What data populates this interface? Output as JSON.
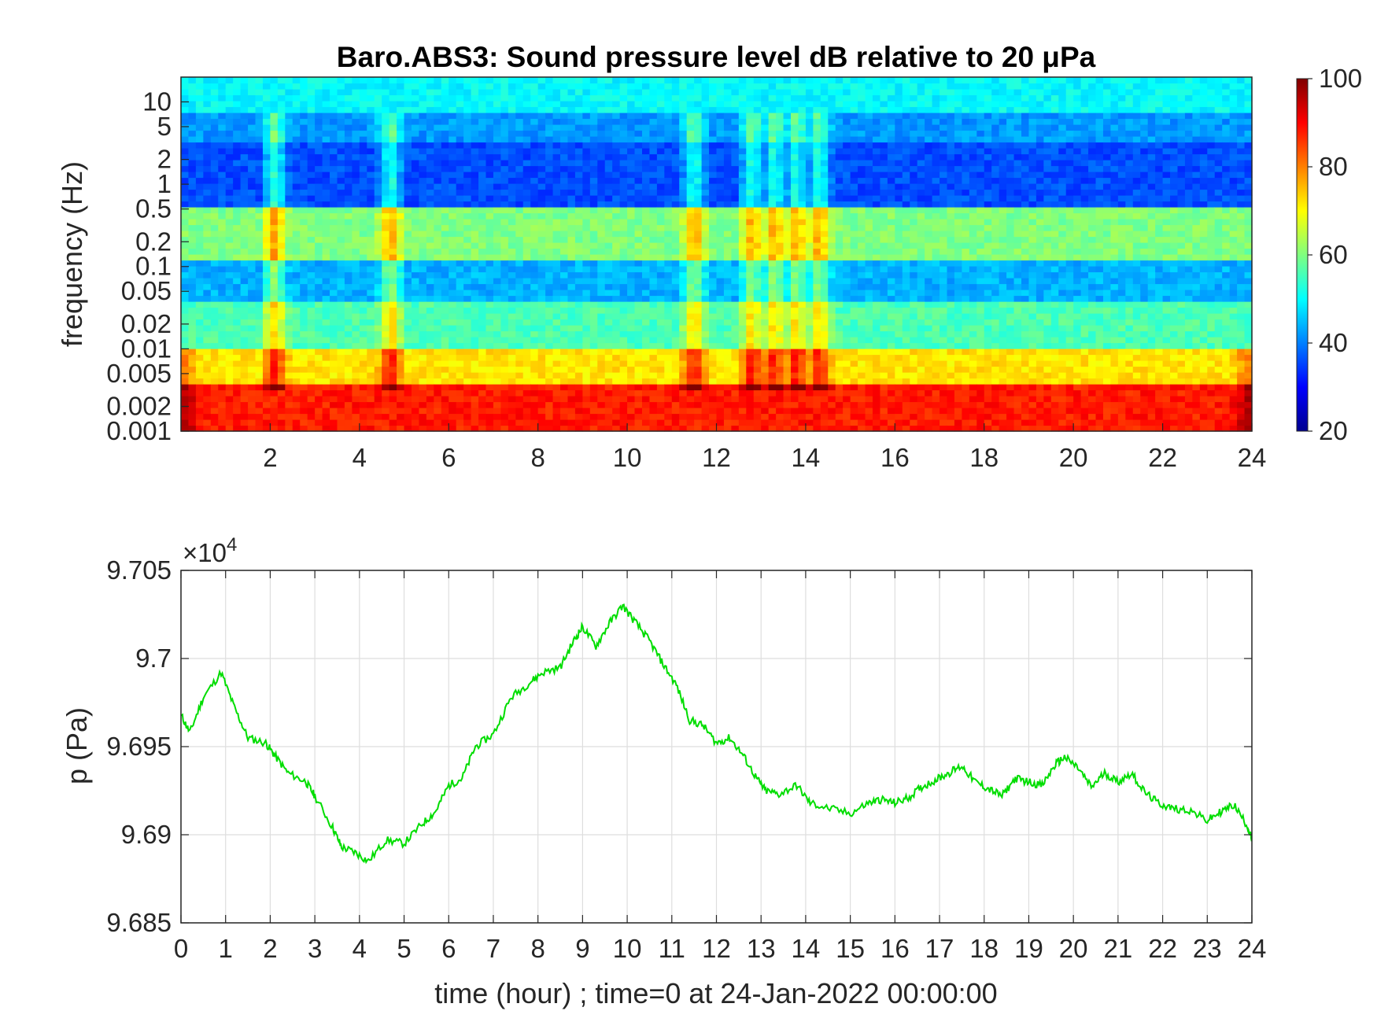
{
  "chart_data": [
    {
      "type": "heatmap",
      "title": "Baro.ABS3: Sound pressure level dB relative to 20 μPa",
      "ylabel": "frequency (Hz)",
      "xlabel": "",
      "x_range": [
        0,
        24
      ],
      "x_ticks": [
        "2",
        "4",
        "6",
        "8",
        "10",
        "12",
        "14",
        "16",
        "18",
        "20",
        "22",
        "24"
      ],
      "y_scale": "log",
      "y_range": [
        0.001,
        20
      ],
      "y_ticks": [
        "0.001",
        "0.002",
        "0.005",
        "0.01",
        "0.02",
        "0.05",
        "0.1",
        "0.2",
        "0.5",
        "1",
        "2",
        "5",
        "10"
      ],
      "colorbar": {
        "range": [
          20,
          100
        ],
        "ticks": [
          "20",
          "40",
          "60",
          "80",
          "100"
        ],
        "colormap": "jet"
      },
      "bands": [
        {
          "freq_range": [
            7,
            20
          ],
          "level_db": 50
        },
        {
          "freq_range": [
            3,
            7
          ],
          "level_db": 42
        },
        {
          "freq_range": [
            0.5,
            3
          ],
          "level_db": 36
        },
        {
          "freq_range": [
            0.12,
            0.5
          ],
          "level_db": 60
        },
        {
          "freq_range": [
            0.04,
            0.12
          ],
          "level_db": 44
        },
        {
          "freq_range": [
            0.01,
            0.04
          ],
          "level_db": 56
        },
        {
          "freq_range": [
            0.004,
            0.01
          ],
          "level_db": 72
        },
        {
          "freq_range": [
            0.001,
            0.004
          ],
          "level_db": 88
        }
      ],
      "events_hour": [
        2.1,
        4.7,
        11.5,
        12.8,
        13.3,
        13.8,
        14.3
      ]
    },
    {
      "type": "line",
      "title": "",
      "xlabel": "time (hour) ; time=0 at 24-Jan-2022 00:00:00",
      "ylabel": "p (Pa)",
      "y_exponent_label": "×10",
      "y_exponent_power": "4",
      "xlim": [
        0,
        24
      ],
      "ylim": [
        9.685,
        9.705
      ],
      "x_ticks": [
        "0",
        "1",
        "2",
        "3",
        "4",
        "5",
        "6",
        "7",
        "8",
        "9",
        "10",
        "11",
        "12",
        "13",
        "14",
        "15",
        "16",
        "17",
        "18",
        "19",
        "20",
        "21",
        "22",
        "23",
        "24"
      ],
      "y_ticks": [
        "9.685",
        "9.69",
        "9.695",
        "9.7",
        "9.705"
      ],
      "grid": true,
      "line_color": "#00dd00",
      "x": [
        0,
        0.2,
        0.5,
        0.9,
        1.2,
        1.5,
        1.9,
        2.1,
        2.4,
        2.8,
        3.0,
        3.4,
        3.6,
        3.9,
        4.2,
        4.6,
        5.0,
        5.4,
        5.7,
        6.0,
        6.3,
        6.6,
        7.0,
        7.4,
        7.8,
        8.1,
        8.5,
        8.8,
        9.0,
        9.3,
        9.6,
        9.9,
        10.2,
        10.5,
        10.8,
        11.1,
        11.4,
        11.7,
        12.0,
        12.3,
        12.6,
        12.9,
        13.1,
        13.4,
        13.8,
        14.1,
        14.5,
        15.0,
        15.4,
        15.7,
        16.0,
        16.3,
        16.6,
        16.9,
        17.2,
        17.5,
        17.8,
        18.1,
        18.4,
        18.7,
        19.0,
        19.3,
        19.6,
        19.8,
        20.1,
        20.4,
        20.7,
        21.0,
        21.3,
        21.6,
        21.9,
        22.2,
        22.6,
        23.0,
        23.3,
        23.6,
        23.9,
        24.0
      ],
      "y": [
        9.6968,
        9.6958,
        9.6978,
        9.6992,
        9.6972,
        9.6955,
        9.6952,
        9.6945,
        9.6935,
        9.693,
        9.6922,
        9.6904,
        9.6893,
        9.689,
        9.6885,
        9.6897,
        9.6895,
        9.6906,
        9.6913,
        9.6928,
        9.6932,
        9.695,
        9.6957,
        9.6978,
        9.6986,
        9.6992,
        9.6995,
        9.701,
        9.7018,
        9.7007,
        9.702,
        9.703,
        9.702,
        9.701,
        9.6997,
        9.6985,
        9.6965,
        9.6962,
        9.6952,
        9.6955,
        9.6945,
        9.6932,
        9.6925,
        9.6923,
        9.6928,
        9.6918,
        9.6915,
        9.6912,
        9.6918,
        9.692,
        9.6918,
        9.6921,
        9.6927,
        9.6931,
        9.6935,
        9.6939,
        9.693,
        9.6926,
        9.6922,
        9.6932,
        9.693,
        9.6928,
        9.694,
        9.6944,
        9.6938,
        9.6927,
        9.6935,
        9.693,
        9.6935,
        9.6924,
        9.6918,
        9.6915,
        9.6914,
        9.6908,
        9.6913,
        9.6917,
        9.6905,
        9.6897
      ]
    }
  ]
}
